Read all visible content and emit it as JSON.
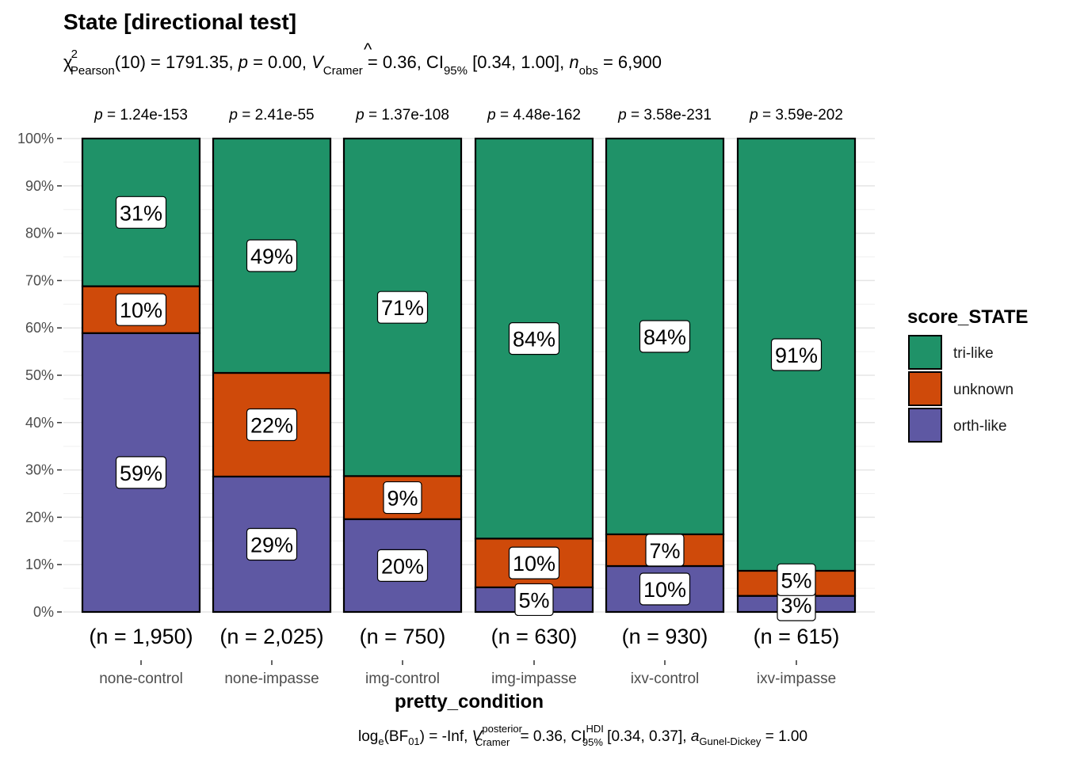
{
  "chart_data": {
    "type": "bar",
    "stacked": true,
    "percent": true,
    "title": "State [directional test]",
    "subtitle": {
      "chi_label": "χ",
      "chi_sup": "2",
      "chi_sub": "Pearson",
      "stat_text": "(10) = 1791.35, ",
      "p_symbol": "p",
      "p_text": " = 0.00, ",
      "v_symbol": "V",
      "v_hat": "^",
      "v_sub": "Cramer",
      "v_text": " = 0.36, CI",
      "ci_sub": "95%",
      "ci_text": " [0.34, 1.00], ",
      "n_symbol": "n",
      "n_sub": "obs",
      "n_text": " = 6,900"
    },
    "categories": [
      "none-control",
      "none-impasse",
      "img-control",
      "img-impasse",
      "ixv-control",
      "ixv-impasse"
    ],
    "counts": [
      "(n = 1,950)",
      "(n = 2,025)",
      "(n = 750)",
      "(n = 630)",
      "(n = 930)",
      "(n = 615)"
    ],
    "p_prefix": "p",
    "p_values": [
      " = 1.24e-153",
      " = 2.41e-55",
      " = 1.37e-108",
      " = 4.48e-162",
      " = 3.58e-231",
      " = 3.59e-202"
    ],
    "series": [
      {
        "name": "orth-like",
        "color": "#5e58a3",
        "values": [
          59,
          29,
          20,
          5,
          10,
          3
        ],
        "labels": [
          "59%",
          "29%",
          "20%",
          "5%",
          "10%",
          "3%"
        ]
      },
      {
        "name": "unknown",
        "color": "#cf4a0a",
        "values": [
          10,
          22,
          9,
          10,
          7,
          5
        ],
        "labels": [
          "10%",
          "22%",
          "9%",
          "10%",
          "7%",
          "5%"
        ]
      },
      {
        "name": "tri-like",
        "color": "#1f9268",
        "values": [
          31,
          49,
          71,
          84,
          84,
          91
        ],
        "labels": [
          "31%",
          "49%",
          "71%",
          "84%",
          "84%",
          "91%"
        ]
      }
    ],
    "exact_shares": {
      "orth-like": [
        58.9,
        28.6,
        19.6,
        5.2,
        9.7,
        3.4
      ],
      "unknown": [
        9.9,
        21.9,
        9.1,
        10.3,
        6.7,
        5.3
      ]
    },
    "y_ticks": [
      "0%",
      "10%",
      "20%",
      "30%",
      "40%",
      "50%",
      "60%",
      "70%",
      "80%",
      "90%",
      "100%"
    ],
    "ylim": [
      0,
      100
    ],
    "xlabel": "pretty_condition",
    "legend": {
      "title": "score_STATE",
      "entries": [
        "tri-like",
        "unknown",
        "orth-like"
      ],
      "position": "right"
    },
    "caption": {
      "log_text": "log",
      "log_sub": "e",
      "bf_text": "(BF",
      "bf_sub": "01",
      "bf_end": ") = -Inf, ",
      "v_symbol": "V",
      "v_sup": "posterior",
      "v_sub": "Cramer",
      "v_text": " = 0.36, CI",
      "ci_sup": "HDI",
      "ci_sub": "95%",
      "ci_text": " [0.34, 0.37], ",
      "a_symbol": "a",
      "a_sub": "Gunel-Dickey",
      "a_text": " = 1.00"
    },
    "grid": true
  }
}
